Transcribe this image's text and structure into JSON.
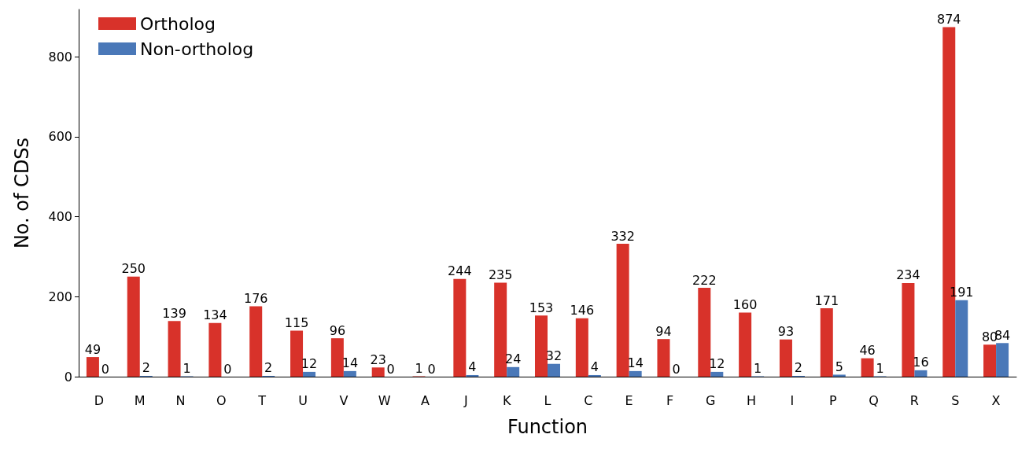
{
  "chart_data": {
    "type": "bar",
    "xlabel": "Function",
    "ylabel": "No. of CDSs",
    "categories": [
      "D",
      "M",
      "N",
      "O",
      "T",
      "U",
      "V",
      "W",
      "A",
      "J",
      "K",
      "L",
      "C",
      "E",
      "F",
      "G",
      "H",
      "I",
      "P",
      "Q",
      "R",
      "S",
      "X"
    ],
    "series": [
      {
        "name": "Ortholog",
        "color": "#d8322a",
        "values": [
          49,
          250,
          139,
          134,
          176,
          115,
          96,
          23,
          1,
          244,
          235,
          153,
          146,
          332,
          94,
          222,
          160,
          93,
          171,
          46,
          234,
          874,
          80
        ]
      },
      {
        "name": "Non-ortholog",
        "color": "#4a78b8",
        "values": [
          0,
          2,
          1,
          0,
          2,
          12,
          14,
          0,
          0,
          4,
          24,
          32,
          4,
          14,
          0,
          12,
          1,
          2,
          5,
          1,
          16,
          191,
          84
        ]
      }
    ],
    "ylim": [
      0,
      918
    ],
    "yticks": [
      0,
      200,
      400,
      600,
      800
    ],
    "grid": false,
    "legend": "top left",
    "data_labels": true
  }
}
